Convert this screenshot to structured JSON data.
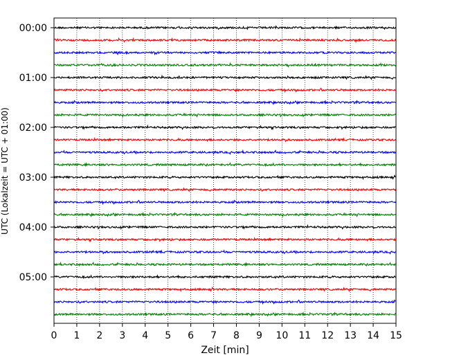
{
  "chart_data": {
    "type": "line",
    "title": "",
    "xlabel": "Zeit  [min]",
    "ylabel": "UTC (Lokalzeit = UTC + 01:00)",
    "xlim": [
      0,
      15
    ],
    "x_ticks": [
      "0",
      "1",
      "2",
      "3",
      "4",
      "5",
      "6",
      "7",
      "8",
      "9",
      "10",
      "11",
      "12",
      "13",
      "14",
      "15"
    ],
    "y_tick_labels": [
      "00:00",
      "01:00",
      "02:00",
      "03:00",
      "04:00",
      "05:00"
    ],
    "grid": "vertical dotted",
    "legend": "none",
    "trace_interval_min": 15,
    "trace_colors": [
      "#000000",
      "#ff0000",
      "#0000ff",
      "#008000"
    ],
    "series": [
      {
        "start": "00:00",
        "color": "#000000"
      },
      {
        "start": "00:15",
        "color": "#ff0000"
      },
      {
        "start": "00:30",
        "color": "#0000ff"
      },
      {
        "start": "00:45",
        "color": "#008000"
      },
      {
        "start": "01:00",
        "color": "#000000"
      },
      {
        "start": "01:15",
        "color": "#ff0000"
      },
      {
        "start": "01:30",
        "color": "#0000ff"
      },
      {
        "start": "01:45",
        "color": "#008000"
      },
      {
        "start": "02:00",
        "color": "#000000"
      },
      {
        "start": "02:15",
        "color": "#ff0000"
      },
      {
        "start": "02:30",
        "color": "#0000ff"
      },
      {
        "start": "02:45",
        "color": "#008000"
      },
      {
        "start": "03:00",
        "color": "#000000"
      },
      {
        "start": "03:15",
        "color": "#ff0000"
      },
      {
        "start": "03:30",
        "color": "#0000ff"
      },
      {
        "start": "03:45",
        "color": "#008000"
      },
      {
        "start": "04:00",
        "color": "#000000"
      },
      {
        "start": "04:15",
        "color": "#ff0000"
      },
      {
        "start": "04:30",
        "color": "#0000ff"
      },
      {
        "start": "04:45",
        "color": "#008000"
      },
      {
        "start": "05:00",
        "color": "#000000"
      },
      {
        "start": "05:15",
        "color": "#ff0000"
      },
      {
        "start": "05:30",
        "color": "#0000ff"
      },
      {
        "start": "05:45",
        "color": "#008000"
      }
    ]
  }
}
